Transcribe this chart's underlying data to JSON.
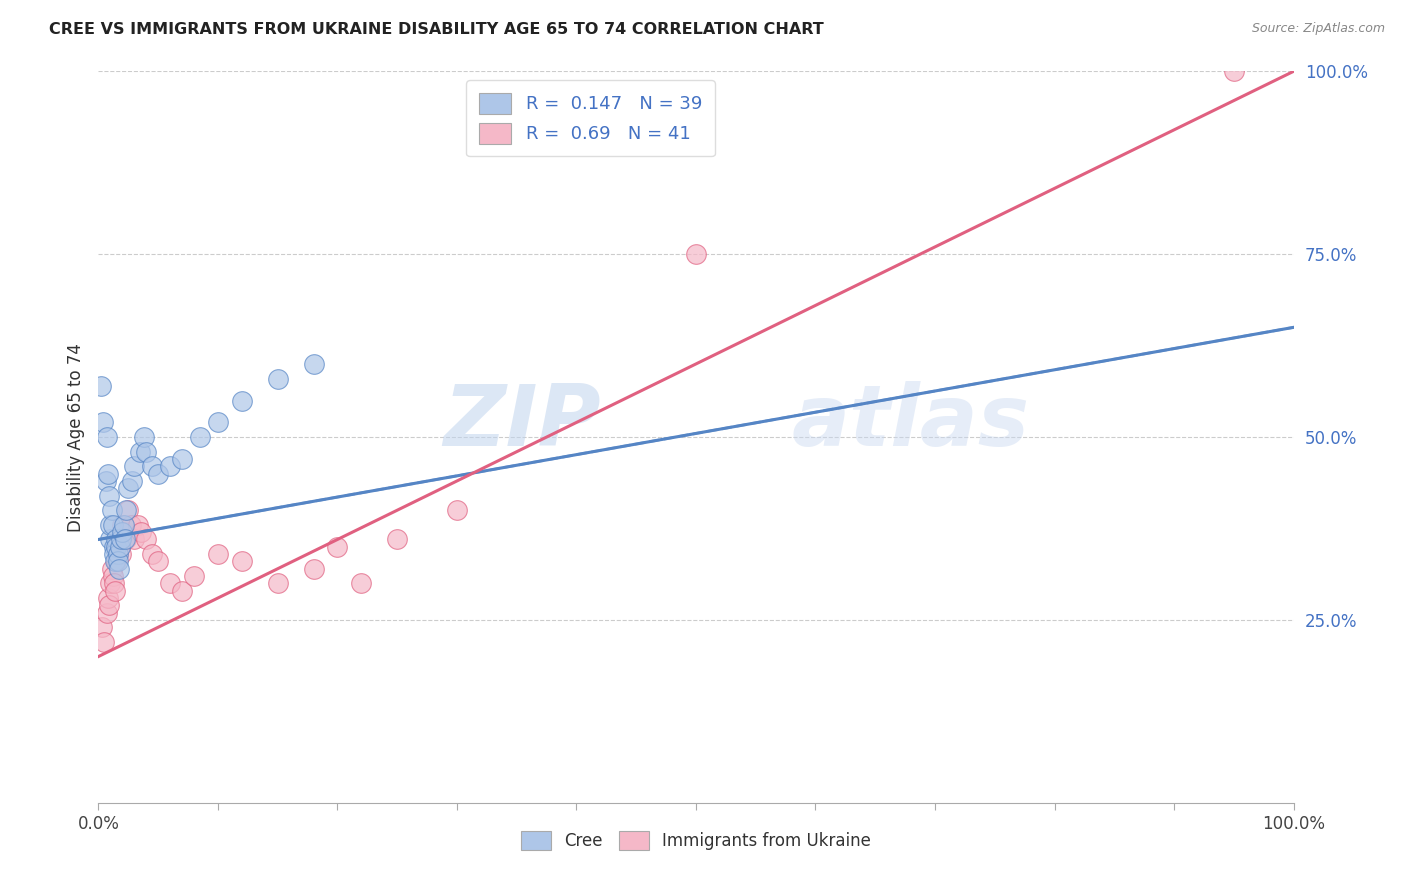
{
  "title": "CREE VS IMMIGRANTS FROM UKRAINE DISABILITY AGE 65 TO 74 CORRELATION CHART",
  "source": "Source: ZipAtlas.com",
  "ylabel": "Disability Age 65 to 74",
  "right_ytick_labels": [
    "25.0%",
    "50.0%",
    "75.0%",
    "100.0%"
  ],
  "right_ytick_vals": [
    0.25,
    0.5,
    0.75,
    1.0
  ],
  "cree_R": 0.147,
  "cree_N": 39,
  "ukraine_R": 0.69,
  "ukraine_N": 41,
  "cree_color": "#aec6e8",
  "ukraine_color": "#f5b8c8",
  "cree_line_color": "#5585c5",
  "ukraine_line_color": "#e06080",
  "watermark_zip": "ZIP",
  "watermark_atlas": "atlas",
  "cree_x": [
    0.002,
    0.004,
    0.006,
    0.007,
    0.008,
    0.009,
    0.01,
    0.01,
    0.011,
    0.012,
    0.013,
    0.013,
    0.014,
    0.015,
    0.015,
    0.016,
    0.016,
    0.017,
    0.018,
    0.019,
    0.02,
    0.021,
    0.022,
    0.023,
    0.025,
    0.028,
    0.03,
    0.035,
    0.038,
    0.04,
    0.045,
    0.05,
    0.06,
    0.07,
    0.085,
    0.1,
    0.12,
    0.15,
    0.18
  ],
  "cree_y": [
    0.57,
    0.52,
    0.44,
    0.5,
    0.45,
    0.42,
    0.36,
    0.38,
    0.4,
    0.38,
    0.35,
    0.34,
    0.33,
    0.36,
    0.35,
    0.34,
    0.33,
    0.32,
    0.35,
    0.36,
    0.37,
    0.38,
    0.36,
    0.4,
    0.43,
    0.44,
    0.46,
    0.48,
    0.5,
    0.48,
    0.46,
    0.45,
    0.46,
    0.47,
    0.5,
    0.52,
    0.55,
    0.58,
    0.6
  ],
  "ukraine_x": [
    0.003,
    0.005,
    0.007,
    0.008,
    0.009,
    0.01,
    0.011,
    0.012,
    0.013,
    0.014,
    0.015,
    0.015,
    0.016,
    0.017,
    0.018,
    0.019,
    0.02,
    0.021,
    0.022,
    0.023,
    0.025,
    0.027,
    0.03,
    0.033,
    0.036,
    0.04,
    0.045,
    0.05,
    0.06,
    0.07,
    0.08,
    0.1,
    0.12,
    0.15,
    0.18,
    0.2,
    0.22,
    0.25,
    0.3,
    0.5,
    0.95
  ],
  "ukraine_y": [
    0.24,
    0.22,
    0.26,
    0.28,
    0.27,
    0.3,
    0.32,
    0.31,
    0.3,
    0.29,
    0.33,
    0.35,
    0.34,
    0.36,
    0.35,
    0.34,
    0.38,
    0.36,
    0.37,
    0.36,
    0.4,
    0.38,
    0.36,
    0.38,
    0.37,
    0.36,
    0.34,
    0.33,
    0.3,
    0.29,
    0.31,
    0.34,
    0.33,
    0.3,
    0.32,
    0.35,
    0.3,
    0.36,
    0.4,
    0.75,
    1.0
  ],
  "cree_line_x0": 0.0,
  "cree_line_y0": 0.36,
  "cree_line_x1": 1.0,
  "cree_line_y1": 0.65,
  "ukraine_line_x0": 0.0,
  "ukraine_line_y0": 0.2,
  "ukraine_line_x1": 1.0,
  "ukraine_line_y1": 1.0,
  "xlim": [
    0,
    1.0
  ],
  "ylim": [
    0,
    1.0
  ]
}
